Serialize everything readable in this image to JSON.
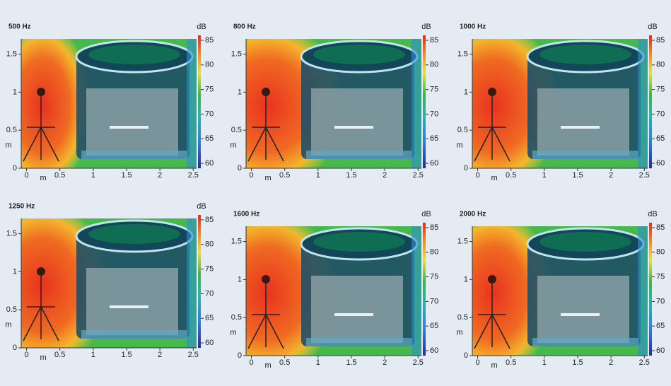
{
  "chart_data": [
    {
      "type": "heatmap",
      "title": "500 Hz",
      "x_label": "m",
      "y_label": "m",
      "colorbar_label": "dB",
      "xlim": [
        -0.08,
        2.55
      ],
      "ylim": [
        0,
        1.7
      ],
      "xticks": [
        0,
        0.5,
        1,
        1.5,
        2,
        2.5
      ],
      "yticks": [
        0,
        0.5,
        1,
        1.5
      ],
      "colorbar_lim": [
        59,
        86
      ],
      "colorbar_ticks": [
        60,
        65,
        70,
        75,
        80,
        85
      ]
    },
    {
      "type": "heatmap",
      "title": "800 Hz",
      "x_label": "m",
      "y_label": "m",
      "colorbar_label": "dB",
      "xlim": [
        -0.08,
        2.55
      ],
      "ylim": [
        0,
        1.7
      ],
      "xticks": [
        0,
        0.5,
        1,
        1.5,
        2,
        2.5
      ],
      "yticks": [
        0,
        0.5,
        1,
        1.5
      ],
      "colorbar_lim": [
        59,
        86
      ],
      "colorbar_ticks": [
        60,
        65,
        70,
        75,
        80,
        85
      ]
    },
    {
      "type": "heatmap",
      "title": "1000 Hz",
      "x_label": "m",
      "y_label": "m",
      "colorbar_label": "dB",
      "xlim": [
        -0.08,
        2.55
      ],
      "ylim": [
        0,
        1.7
      ],
      "xticks": [
        0,
        0.5,
        1,
        1.5,
        2,
        2.5
      ],
      "yticks": [
        0,
        0.5,
        1,
        1.5
      ],
      "colorbar_lim": [
        59,
        86
      ],
      "colorbar_ticks": [
        60,
        65,
        70,
        75,
        80,
        85
      ]
    },
    {
      "type": "heatmap",
      "title": "1250 Hz",
      "x_label": "m",
      "y_label": "m",
      "colorbar_label": "dB",
      "xlim": [
        -0.08,
        2.55
      ],
      "ylim": [
        0,
        1.7
      ],
      "xticks": [
        0,
        0.5,
        1,
        1.5,
        2,
        2.5
      ],
      "yticks": [
        0,
        0.5,
        1,
        1.5
      ],
      "colorbar_lim": [
        59,
        86
      ],
      "colorbar_ticks": [
        60,
        65,
        70,
        75,
        80,
        85
      ]
    },
    {
      "type": "heatmap",
      "title": "1600 Hz",
      "x_label": "m",
      "y_label": "m",
      "colorbar_label": "dB",
      "xlim": [
        -0.08,
        2.55
      ],
      "ylim": [
        0,
        1.7
      ],
      "xticks": [
        0,
        0.5,
        1,
        1.5,
        2,
        2.5
      ],
      "yticks": [
        0,
        0.5,
        1,
        1.5
      ],
      "colorbar_lim": [
        59,
        86
      ],
      "colorbar_ticks": [
        60,
        65,
        70,
        75,
        80,
        85
      ]
    },
    {
      "type": "heatmap",
      "title": "2000 Hz",
      "x_label": "m",
      "y_label": "m",
      "colorbar_label": "dB",
      "xlim": [
        -0.08,
        2.55
      ],
      "ylim": [
        0,
        1.7
      ],
      "xticks": [
        0,
        0.5,
        1,
        1.5,
        2,
        2.5
      ],
      "yticks": [
        0,
        0.5,
        1,
        1.5
      ],
      "colorbar_lim": [
        59,
        86
      ],
      "colorbar_ticks": [
        60,
        65,
        70,
        75,
        80,
        85
      ]
    }
  ]
}
